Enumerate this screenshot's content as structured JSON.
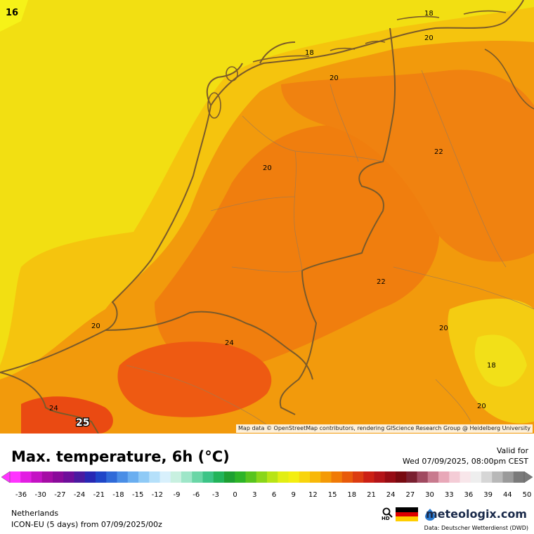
{
  "map": {
    "attribution": "Map data © OpenStreetMap contributors, rendering GIScience Research Group @ Heidelberg University",
    "contour_labels": [
      {
        "text": "16",
        "cls": "corner"
      },
      {
        "text": "18"
      },
      {
        "text": "20"
      },
      {
        "text": "18"
      },
      {
        "text": "20"
      },
      {
        "text": "22"
      },
      {
        "text": "20"
      },
      {
        "text": "22"
      },
      {
        "text": "20"
      },
      {
        "text": "24"
      },
      {
        "text": "20"
      },
      {
        "text": "18"
      },
      {
        "text": "20"
      },
      {
        "text": "24"
      },
      {
        "text": "25"
      }
    ]
  },
  "title": "Max. temperature, 6h (°C)",
  "valid_label": "Valid for",
  "valid_time": "Wed 07/09/2025, 08:00pm CEST",
  "region": "Netherlands",
  "model_run": "ICON-EU (5 days) from 07/09/2025/00z",
  "brand": "meteologix.com",
  "data_source": "Data: Deutscher Wetterdienst (DWD)",
  "hd_label": "HD",
  "scale": {
    "ticks": [
      "-36",
      "-30",
      "-27",
      "-24",
      "-21",
      "-18",
      "-15",
      "-12",
      "-9",
      "-6",
      "-3",
      "0",
      "3",
      "6",
      "9",
      "12",
      "15",
      "18",
      "21",
      "24",
      "27",
      "30",
      "33",
      "36",
      "39",
      "44",
      "50"
    ],
    "colors": [
      "#ff33ff",
      "#e21ee2",
      "#c412c4",
      "#a50ca5",
      "#8a0a9a",
      "#6e0e9a",
      "#4a1aa0",
      "#2828b4",
      "#1f46c8",
      "#2f6ad8",
      "#4a8ee6",
      "#6aaef0",
      "#8fcaf6",
      "#b5e0fa",
      "#d8f0fc",
      "#c8f0e0",
      "#9ee6c8",
      "#6ad6a6",
      "#3cc486",
      "#22b45a",
      "#1ea032",
      "#2eb428",
      "#58c41e",
      "#8ad61a",
      "#b8e416",
      "#e2ee14",
      "#f4ee10",
      "#f8d40c",
      "#f8b808",
      "#f49a06",
      "#f07a06",
      "#e85a0a",
      "#dc3c10",
      "#cc2014",
      "#b41418",
      "#960c14",
      "#780a10",
      "#7a2030",
      "#a04a60",
      "#c87a8e",
      "#e8a8b8",
      "#f4ccd6",
      "#f8e6ea",
      "#eeeeee",
      "#d6d6d6",
      "#b8b8b8",
      "#9a9a9a",
      "#7a7a7a"
    ]
  }
}
